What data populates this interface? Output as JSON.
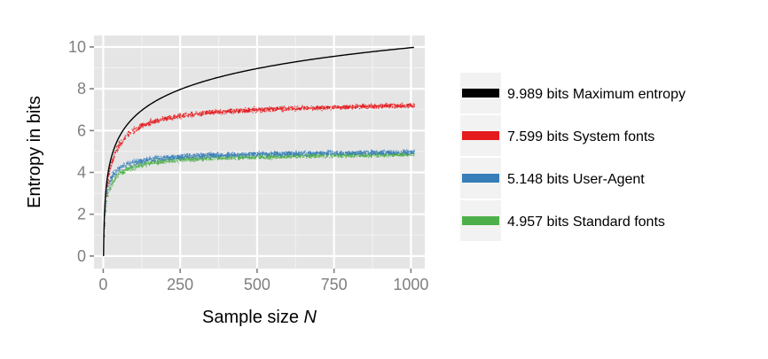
{
  "chart_data": {
    "type": "scatter",
    "title": "",
    "xlabel": "Sample size ",
    "xlabel_italic": "N",
    "ylabel": "Entropy in bits",
    "xlim": [
      -30,
      1045
    ],
    "ylim": [
      -0.6,
      10.55
    ],
    "xticks": [
      0,
      250,
      500,
      750,
      1000
    ],
    "xtick_labels": [
      "0",
      "250",
      "500",
      "750",
      "1000"
    ],
    "yticks": [
      0,
      2,
      4,
      6,
      8,
      10
    ],
    "ytick_labels": [
      "0",
      "2",
      "4",
      "6",
      "8",
      "10"
    ],
    "grid": true,
    "legend_position": "right",
    "x": [
      2,
      5,
      10,
      20,
      30,
      50,
      75,
      100,
      150,
      200,
      250,
      300,
      400,
      500,
      600,
      700,
      800,
      900,
      1000
    ],
    "series": [
      {
        "name": "Maximum entropy",
        "value_label": "9.989 bits",
        "color": "#000000",
        "style": "line",
        "values": [
          1.0,
          2.32,
          3.32,
          4.32,
          4.91,
          5.64,
          6.23,
          6.64,
          7.23,
          7.64,
          7.97,
          8.23,
          8.64,
          8.97,
          9.23,
          9.45,
          9.64,
          9.81,
          9.97
        ]
      },
      {
        "name": "System fonts",
        "value_label": "7.599 bits",
        "color": "#e41a1c",
        "style": "points",
        "values": [
          1.0,
          2.3,
          3.3,
          4.2,
          4.7,
          5.3,
          5.8,
          6.05,
          6.4,
          6.6,
          6.72,
          6.82,
          6.95,
          7.02,
          7.08,
          7.12,
          7.16,
          7.2,
          7.23
        ]
      },
      {
        "name": "User-Agent",
        "value_label": "5.148 bits",
        "color": "#377eb8",
        "style": "points",
        "values": [
          1.0,
          2.2,
          3.0,
          3.6,
          3.9,
          4.2,
          4.4,
          4.5,
          4.65,
          4.72,
          4.78,
          4.82,
          4.87,
          4.9,
          4.93,
          4.95,
          4.97,
          4.98,
          5.0
        ]
      },
      {
        "name": "Standard fonts",
        "value_label": "4.957 bits",
        "color": "#4daf4a",
        "style": "points",
        "values": [
          1.0,
          2.0,
          2.8,
          3.3,
          3.6,
          3.95,
          4.15,
          4.3,
          4.48,
          4.57,
          4.63,
          4.67,
          4.73,
          4.77,
          4.8,
          4.83,
          4.85,
          4.87,
          4.88
        ]
      }
    ]
  }
}
